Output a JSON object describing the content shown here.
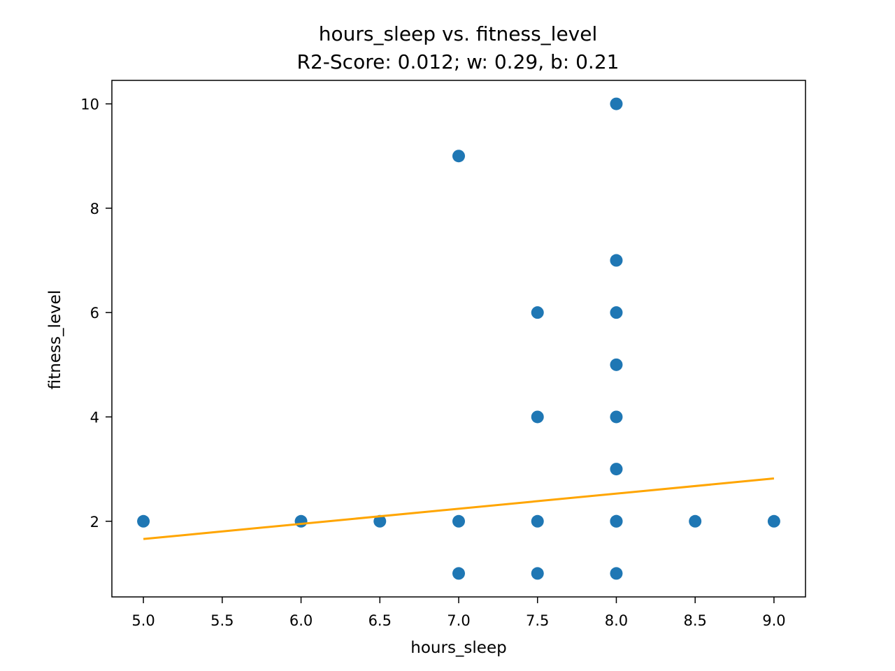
{
  "chart_data": {
    "type": "scatter",
    "title": "hours_sleep vs. fitness_level",
    "subtitle": "R2-Score: 0.012; w: 0.29, b: 0.21",
    "xlabel": "hours_sleep",
    "ylabel": "fitness_level",
    "xlim": [
      4.8,
      9.2
    ],
    "ylim": [
      0.55,
      10.45
    ],
    "x_ticks": [
      5.0,
      5.5,
      6.0,
      6.5,
      7.0,
      7.5,
      8.0,
      8.5,
      9.0
    ],
    "x_tick_labels": [
      "5.0",
      "5.5",
      "6.0",
      "6.5",
      "7.0",
      "7.5",
      "8.0",
      "8.5",
      "9.0"
    ],
    "y_ticks": [
      2,
      4,
      6,
      8,
      10
    ],
    "y_tick_labels": [
      "2",
      "4",
      "6",
      "8",
      "10"
    ],
    "grid": false,
    "series": [
      {
        "type": "scatter",
        "color": "#1f77b4",
        "x": [
          5.0,
          6.0,
          6.5,
          7.0,
          7.0,
          7.0,
          7.5,
          7.5,
          7.5,
          7.5,
          8.0,
          8.0,
          8.0,
          8.0,
          8.0,
          8.0,
          8.0,
          8.0,
          8.0,
          8.5,
          9.0
        ],
        "y": [
          2,
          2,
          2,
          9,
          2,
          1,
          6,
          4,
          2,
          1,
          10,
          7,
          6,
          5,
          4,
          3,
          2,
          1,
          2,
          2,
          2
        ]
      },
      {
        "type": "line",
        "color": "#ffa500",
        "x": [
          5.0,
          9.0
        ],
        "y": [
          1.66,
          2.82
        ]
      }
    ]
  }
}
